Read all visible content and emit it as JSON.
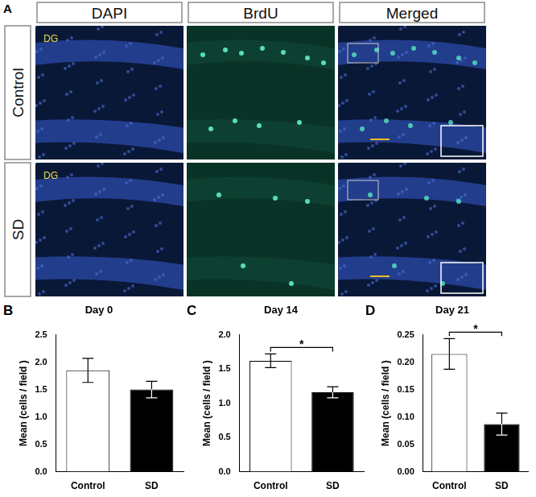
{
  "figure_a": {
    "panel_label": "A",
    "columns": [
      "DAPI",
      "BrdU",
      "Merged"
    ],
    "rows": [
      "Control",
      "SD"
    ],
    "region_label": "DG"
  },
  "chart_data": [
    {
      "panel_label": "B",
      "type": "bar",
      "title": "Day 0",
      "y_label": "Mean (cells / field )",
      "categories": [
        "Control",
        "SD"
      ],
      "values": [
        1.85,
        1.5
      ],
      "errors": [
        0.22,
        0.15
      ],
      "colors": [
        "#ffffff",
        "#000000"
      ],
      "ylim": [
        0,
        2.5
      ],
      "yticks": [
        {
          "value": 0,
          "label": "0.0"
        },
        0.5,
        {
          "value": 1,
          "label": "1.0"
        },
        1.5,
        {
          "value": 2,
          "label": "2.0"
        },
        2.5
      ],
      "grid": false
    },
    {
      "panel_label": "C",
      "type": "bar",
      "title": "Day 14",
      "y_label": "Mean (cells / field )",
      "categories": [
        "Control",
        "SD"
      ],
      "values": [
        1.62,
        1.16
      ],
      "errors": [
        0.1,
        0.08
      ],
      "colors": [
        "#ffffff",
        "#000000"
      ],
      "ylim": [
        0,
        2
      ],
      "yticks": [
        {
          "value": 0,
          "label": "0.0"
        },
        0.5,
        {
          "value": 1,
          "label": "1.0"
        },
        1.5,
        {
          "value": 2,
          "label": "2.0"
        }
      ],
      "grid": false,
      "annotation": "*"
    },
    {
      "panel_label": "D",
      "type": "bar",
      "title": "Day 21",
      "y_label": "Mean (cells / field )",
      "categories": [
        "Control",
        "SD"
      ],
      "values": [
        0.215,
        0.087
      ],
      "errors": [
        0.028,
        0.02
      ],
      "colors": [
        "#ffffff",
        "#000000"
      ],
      "ylim": [
        0,
        0.25
      ],
      "yticks": [
        {
          "value": 0,
          "label": "0.00"
        },
        0.05,
        {
          "value": 0.1,
          "label": "0.10"
        },
        0.15,
        {
          "value": 0.2,
          "label": "0.20"
        },
        0.25
      ],
      "grid": false,
      "annotation": "*"
    }
  ]
}
